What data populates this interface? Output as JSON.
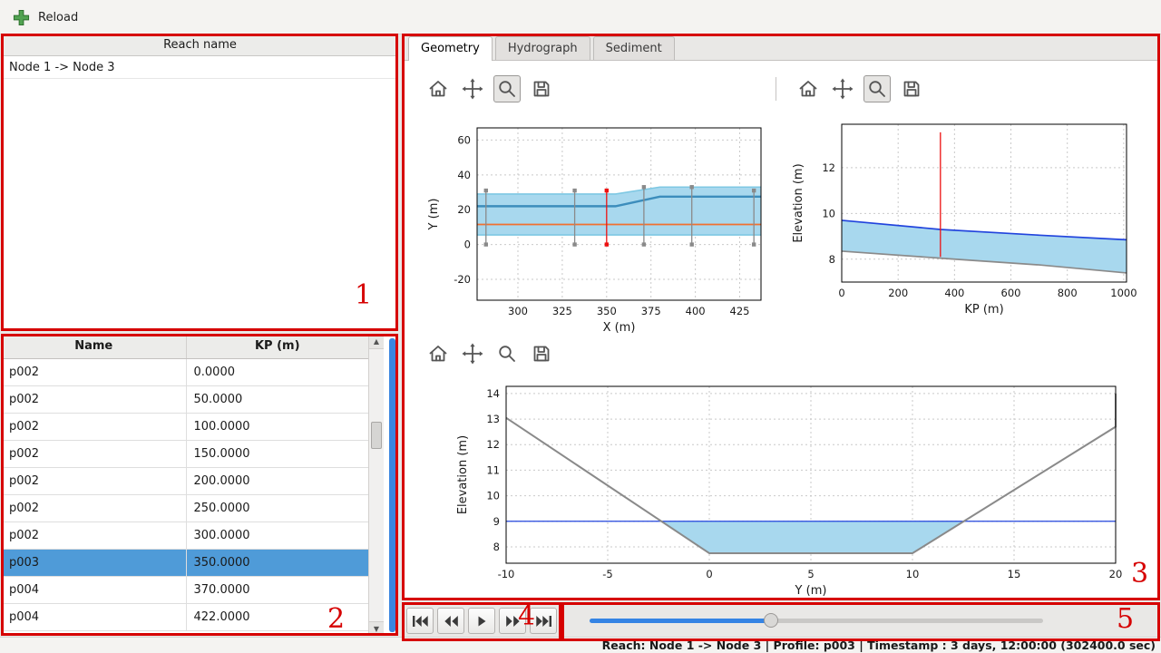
{
  "app": {
    "reload_label": "Reload"
  },
  "reach_panel": {
    "header": "Reach name",
    "items": [
      "Node 1 -> Node 3"
    ]
  },
  "profile_table": {
    "columns": [
      "Name",
      "KP (m)"
    ],
    "rows": [
      [
        "p002",
        "0.0000"
      ],
      [
        "p002",
        "50.0000"
      ],
      [
        "p002",
        "100.0000"
      ],
      [
        "p002",
        "150.0000"
      ],
      [
        "p002",
        "200.0000"
      ],
      [
        "p002",
        "250.0000"
      ],
      [
        "p002",
        "300.0000"
      ],
      [
        "p003",
        "350.0000"
      ],
      [
        "p004",
        "370.0000"
      ],
      [
        "p004",
        "422.0000"
      ]
    ],
    "selected_index": 7
  },
  "tabs": [
    {
      "label": "Geometry"
    },
    {
      "label": "Hydrograph"
    },
    {
      "label": "Sediment"
    }
  ],
  "status_bar": {
    "text": "Reach: Node 1 -> Node 3 | Profile: p003 | Timestamp : 3 days, 12:00:00 (302400.0 sec)"
  },
  "annotations": [
    "1",
    "2",
    "3",
    "4",
    "5"
  ],
  "colors": {
    "selection": "#4f9bd8",
    "slider_fill": "#3584e4",
    "annotation": "#d60000",
    "fill_blue": "#a8d8ee",
    "line_blue": "#2244dd",
    "line_gray": "#8a8a8a",
    "line_red": "#ee1111",
    "line_orange": "#f07030",
    "line_steel": "#3c8dbc",
    "line_lightblue": "#7ec8e3"
  },
  "chart_data": [
    {
      "type": "line",
      "xlabel": "X (m)",
      "ylabel": "Y (m)",
      "xlim": [
        277,
        437
      ],
      "ylim": [
        -32,
        67
      ],
      "xticks": [
        300,
        325,
        350,
        375,
        400,
        425
      ],
      "yticks": [
        -20,
        0,
        20,
        40,
        60
      ],
      "fills": [
        {
          "color": "#a8d8ee",
          "points": [
            [
              277,
              29
            ],
            [
              355,
              29
            ],
            [
              380,
              33
            ],
            [
              437,
              33
            ],
            [
              437,
              5.5
            ],
            [
              277,
              5.5
            ]
          ]
        }
      ],
      "lines": [
        {
          "color": "#7ec8e3",
          "width": 1.6,
          "points": [
            [
              277,
              5.5
            ],
            [
              437,
              5.5
            ]
          ]
        },
        {
          "color": "#7ec8e3",
          "width": 1.6,
          "points": [
            [
              277,
              29
            ],
            [
              355,
              29
            ],
            [
              380,
              33
            ],
            [
              437,
              33
            ]
          ]
        },
        {
          "color": "#3c8dbc",
          "width": 2.4,
          "points": [
            [
              277,
              22
            ],
            [
              355,
              22
            ],
            [
              380,
              27.5
            ],
            [
              437,
              27.5
            ]
          ]
        },
        {
          "color": "#f07030",
          "width": 1.8,
          "points": [
            [
              277,
              11.5
            ],
            [
              437,
              11.5
            ]
          ]
        }
      ],
      "vlines": [
        {
          "x": 282,
          "y1": 0,
          "y2": 31,
          "color": "#8a8a8a",
          "caps": true
        },
        {
          "x": 332,
          "y1": 0,
          "y2": 31,
          "color": "#8a8a8a",
          "caps": true
        },
        {
          "x": 371,
          "y1": 0,
          "y2": 33,
          "color": "#8a8a8a",
          "caps": true
        },
        {
          "x": 398,
          "y1": 0,
          "y2": 33,
          "color": "#8a8a8a",
          "caps": true
        },
        {
          "x": 433,
          "y1": 0,
          "y2": 31,
          "color": "#8a8a8a",
          "caps": true
        },
        {
          "x": 350,
          "y1": 0,
          "y2": 31,
          "color": "#ee1111",
          "caps": true
        }
      ]
    },
    {
      "type": "line",
      "xlabel": "KP (m)",
      "ylabel": "Elevation (m)",
      "xlim": [
        0,
        1010
      ],
      "ylim": [
        7.0,
        13.9
      ],
      "xticks": [
        0,
        200,
        400,
        600,
        800,
        1000
      ],
      "yticks": [
        8,
        10,
        12
      ],
      "fills": [
        {
          "color": "#a8d8ee",
          "points": [
            [
              0,
              9.7
            ],
            [
              350,
              9.3
            ],
            [
              700,
              9.05
            ],
            [
              1010,
              8.85
            ],
            [
              1010,
              7.4
            ],
            [
              700,
              7.75
            ],
            [
              400,
              8.0
            ],
            [
              0,
              8.35
            ]
          ]
        }
      ],
      "lines": [
        {
          "color": "#2244dd",
          "width": 1.7,
          "points": [
            [
              0,
              9.7
            ],
            [
              350,
              9.3
            ],
            [
              700,
              9.05
            ],
            [
              1010,
              8.85
            ]
          ]
        },
        {
          "color": "#8a8a8a",
          "width": 1.7,
          "points": [
            [
              0,
              8.35
            ],
            [
              400,
              8.0
            ],
            [
              700,
              7.75
            ],
            [
              1010,
              7.4
            ]
          ]
        }
      ],
      "vlines": [
        {
          "x": 350,
          "y1": 8.1,
          "y2": 13.55,
          "color": "#ee1111",
          "caps": false
        }
      ]
    },
    {
      "type": "line",
      "xlabel": "Y (m)",
      "ylabel": "Elevation (m)",
      "xlim": [
        -10,
        20
      ],
      "ylim": [
        7.36,
        14.28
      ],
      "xticks": [
        -10,
        -5,
        0,
        5,
        10,
        15,
        20
      ],
      "yticks": [
        8,
        9,
        10,
        11,
        12,
        13,
        14
      ],
      "fills": [
        {
          "color": "#a8d8ee",
          "points": [
            [
              -2.36,
              9
            ],
            [
              12.53,
              9
            ],
            [
              10,
              7.75
            ],
            [
              0,
              7.75
            ]
          ]
        }
      ],
      "lines": [
        {
          "color": "#2244dd",
          "width": 1.3,
          "points": [
            [
              -10,
              9
            ],
            [
              20,
              9
            ]
          ]
        },
        {
          "color": "#8a8a8a",
          "width": 2,
          "points": [
            [
              -10,
              13.05
            ],
            [
              0,
              7.75
            ],
            [
              10,
              7.75
            ],
            [
              20,
              12.7
            ],
            [
              20,
              14.0
            ]
          ]
        }
      ],
      "vlines": []
    }
  ]
}
